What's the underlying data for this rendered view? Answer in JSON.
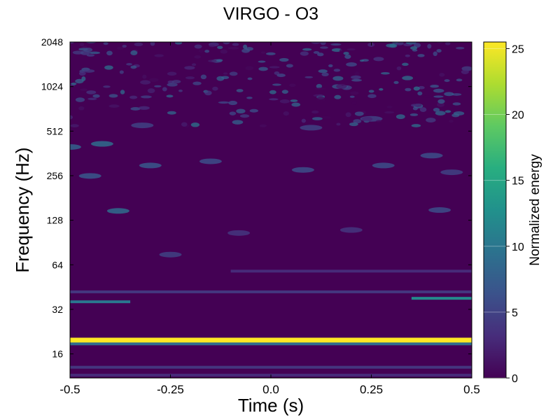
{
  "chart_data": {
    "type": "heatmap",
    "title": "VIRGO - O3",
    "xlabel": "Time (s)",
    "ylabel": "Frequency (Hz)",
    "xlim": [
      -0.5,
      0.5
    ],
    "ylim": [
      11,
      2048
    ],
    "y_scale": "log2",
    "x_ticks": [
      -0.5,
      -0.25,
      0.0,
      0.25,
      0.5
    ],
    "x_tick_labels": [
      "-0.5",
      "-0.25",
      "0.0",
      "0.25",
      "0.5"
    ],
    "y_ticks": [
      16,
      32,
      64,
      128,
      256,
      512,
      1024,
      2048
    ],
    "y_tick_labels": [
      "16",
      "32",
      "64",
      "128",
      "256",
      "512",
      "1024",
      "2048"
    ],
    "colormap": "viridis",
    "colorbar": {
      "label": "Normalized energy",
      "range": [
        0,
        25.5
      ],
      "ticks": [
        0,
        5,
        10,
        15,
        20,
        25
      ],
      "tick_labels": [
        "0",
        "5",
        "10",
        "15",
        "20",
        "25"
      ]
    },
    "features": [
      {
        "kind": "band",
        "freq": 19.5,
        "time_range": [
          -0.5,
          0.5
        ],
        "energy": 25.5
      },
      {
        "kind": "band",
        "freq": 18.7,
        "time_range": [
          -0.5,
          0.5
        ],
        "energy": 9
      },
      {
        "kind": "band",
        "freq": 36,
        "time_range": [
          -0.5,
          -0.35
        ],
        "energy": 10
      },
      {
        "kind": "band",
        "freq": 38,
        "time_range": [
          0.35,
          0.5
        ],
        "energy": 12
      },
      {
        "kind": "band",
        "freq": 42,
        "time_range": [
          -0.5,
          0.5
        ],
        "energy": 4
      },
      {
        "kind": "band",
        "freq": 58,
        "time_range": [
          -0.1,
          0.5
        ],
        "energy": 3
      },
      {
        "kind": "band",
        "freq": 13,
        "time_range": [
          -0.5,
          0.5
        ],
        "energy": 4
      },
      {
        "kind": "band",
        "freq": 11.5,
        "time_range": [
          -0.5,
          0.5
        ],
        "energy": 3
      },
      {
        "kind": "blob",
        "time": -0.38,
        "freq": 148,
        "energy": 9
      },
      {
        "kind": "blob",
        "time": 0.42,
        "freq": 150,
        "energy": 6
      },
      {
        "kind": "blob",
        "time": -0.25,
        "freq": 75,
        "energy": 5
      },
      {
        "kind": "blob",
        "time": -0.08,
        "freq": 105,
        "energy": 4
      },
      {
        "kind": "blob",
        "time": 0.2,
        "freq": 110,
        "energy": 4
      },
      {
        "kind": "blob",
        "time": -0.42,
        "freq": 420,
        "energy": 9
      },
      {
        "kind": "blob",
        "time": -0.5,
        "freq": 400,
        "energy": 8
      },
      {
        "kind": "blob",
        "time": -0.3,
        "freq": 300,
        "energy": 7
      },
      {
        "kind": "blob",
        "time": -0.45,
        "freq": 255,
        "energy": 7
      },
      {
        "kind": "blob",
        "time": -0.15,
        "freq": 320,
        "energy": 6
      },
      {
        "kind": "blob",
        "time": 0.08,
        "freq": 280,
        "energy": 6
      },
      {
        "kind": "blob",
        "time": 0.28,
        "freq": 300,
        "energy": 6
      },
      {
        "kind": "blob",
        "time": 0.4,
        "freq": 350,
        "energy": 6
      },
      {
        "kind": "blob",
        "time": 0.45,
        "freq": 270,
        "energy": 5
      },
      {
        "kind": "blob",
        "time": -0.32,
        "freq": 560,
        "energy": 5
      },
      {
        "kind": "blob",
        "time": 0.1,
        "freq": 540,
        "energy": 5
      },
      {
        "kind": "blob",
        "time": 0.25,
        "freq": 620,
        "energy": 5
      },
      {
        "kind": "noise",
        "freq_range": [
          550,
          2048
        ],
        "energy_range": [
          0,
          10
        ]
      }
    ]
  }
}
